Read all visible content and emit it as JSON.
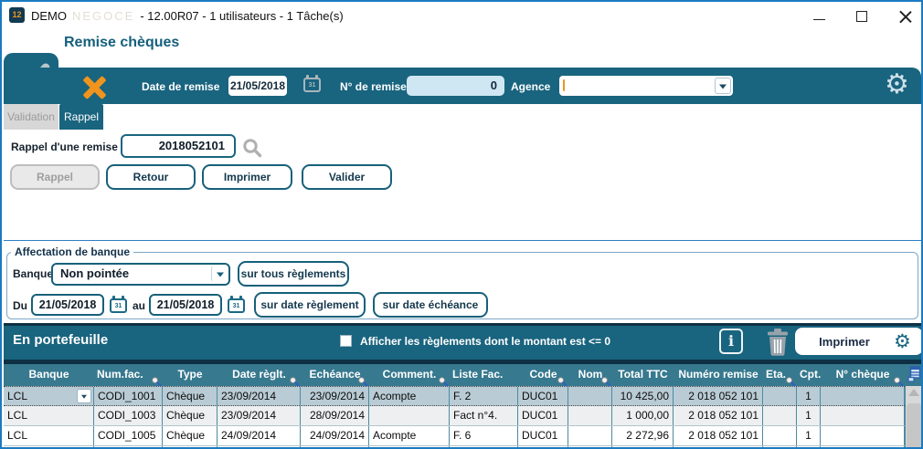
{
  "window": {
    "app_icon_text": "12",
    "title_app": "DEMO",
    "title_watermark": "NEGOCE",
    "title_rest": "- 12.00R07 - 1 utilisateurs - 1 Tâche(s)"
  },
  "page_title": "Remise chèques",
  "toolbar": {
    "date_remise_label": "Date de remise",
    "date_remise_value": "21/05/2018",
    "num_remise_label": "N° de remise",
    "num_remise_value": "0",
    "agence_label": "Agence",
    "agence_value": ""
  },
  "icons": {
    "calendar_day": "31",
    "info_glyph": "i",
    "gear_glyph": "⚙"
  },
  "tabs": [
    {
      "label": "Validation",
      "active": false,
      "disabled": true
    },
    {
      "label": "Rappel",
      "active": true,
      "disabled": false
    }
  ],
  "rappel_section": {
    "field_label": "Rappel d'une remise",
    "field_value": "2018052101",
    "buttons": [
      {
        "label": "Rappel",
        "disabled": true
      },
      {
        "label": "Retour",
        "disabled": false
      },
      {
        "label": "Imprimer",
        "disabled": false
      },
      {
        "label": "Valider",
        "disabled": false
      }
    ]
  },
  "bank_section": {
    "legend": "Affectation de banque",
    "banque_label": "Banque",
    "banque_value": "Non pointée",
    "du_label": "Du",
    "du_value": "21/05/2018",
    "au_label": "au",
    "au_value": "21/05/2018",
    "btn_tous_reglements": "sur tous règlements",
    "btn_date_reglement": "sur date règlement",
    "btn_date_echeance": "sur date échéance"
  },
  "portfolio": {
    "title": "En portefeuille",
    "checkbox_label": "Afficher les règlements dont le montant est <= 0",
    "checkbox_checked": false,
    "imprimer_label": "Imprimer"
  },
  "table": {
    "selected_row": 0,
    "columns": [
      {
        "label": "Banque",
        "pin": false
      },
      {
        "label": "Num.fac.",
        "pin": true
      },
      {
        "label": "Type",
        "pin": false
      },
      {
        "label": "Date règlt.",
        "pin": true
      },
      {
        "label": "Echéance",
        "pin": true
      },
      {
        "label": "Comment.",
        "pin": true
      },
      {
        "label": "Liste Fac.",
        "pin": false
      },
      {
        "label": "Code",
        "pin": true
      },
      {
        "label": "Nom",
        "pin": true
      },
      {
        "label": "Total TTC",
        "pin": false
      },
      {
        "label": "Numéro remise",
        "pin": false
      },
      {
        "label": "Eta.",
        "pin": true
      },
      {
        "label": "Cpt.",
        "pin": false
      },
      {
        "label": "N° chèque",
        "pin": true
      }
    ],
    "rows": [
      [
        "LCL",
        "CODI_1001",
        "Chèque",
        "23/09/2014",
        "23/09/2014",
        "Acompte",
        "F. 2",
        "DUC01",
        "",
        "10 425,00",
        "2 018 052 101",
        "",
        "1",
        ""
      ],
      [
        "LCL",
        "CODI_1003",
        "Chèque",
        "23/09/2014",
        "28/09/2014",
        "",
        "Fact n°4.",
        "DUC01",
        "",
        "1 000,00",
        "2 018 052 101",
        "",
        "1",
        ""
      ],
      [
        "LCL",
        "CODI_1005",
        "Chèque",
        "24/09/2014",
        "24/09/2014",
        "Acompte",
        "F. 6",
        "DUC01",
        "",
        "2 272,96",
        "2 018 052 101",
        "",
        "1",
        ""
      ]
    ]
  },
  "colors": {
    "teal": "#19647f",
    "table_header_teal": "#37798f",
    "orange": "#f0941d",
    "selected_row": "#b9ccd5",
    "window_border": "#1b7ac0"
  }
}
